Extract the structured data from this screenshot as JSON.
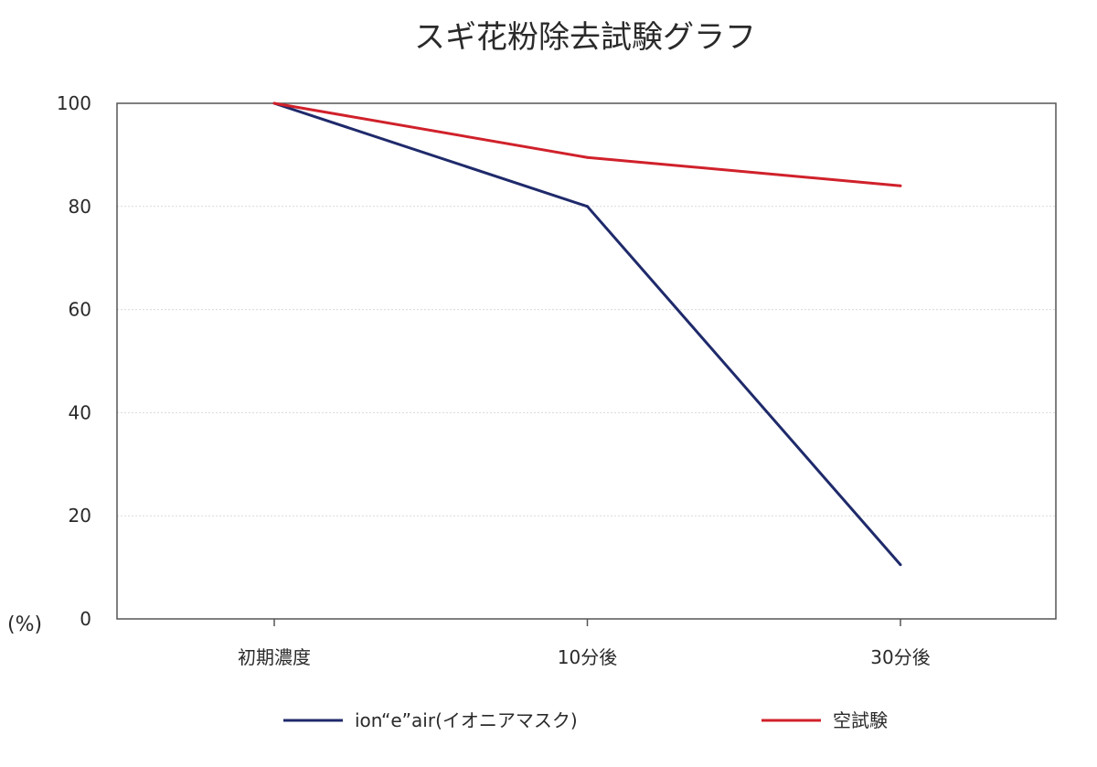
{
  "chart_data": {
    "type": "line",
    "title": "スギ花粉除去試験グラフ",
    "ylabel": "(%)",
    "xlabel": "",
    "categories": [
      "初期濃度",
      "10分後",
      "30分後"
    ],
    "ylim": [
      0,
      100
    ],
    "yticks": [
      0,
      20,
      40,
      60,
      80,
      100
    ],
    "grid": true,
    "legend_position": "bottom",
    "series": [
      {
        "name": "ion“e”air(イオニアマスク)",
        "values": [
          100,
          80,
          10.5
        ],
        "color": "#1f2a6b"
      },
      {
        "name": "空試験",
        "values": [
          100,
          89.5,
          84
        ],
        "color": "#d0212b"
      }
    ]
  }
}
